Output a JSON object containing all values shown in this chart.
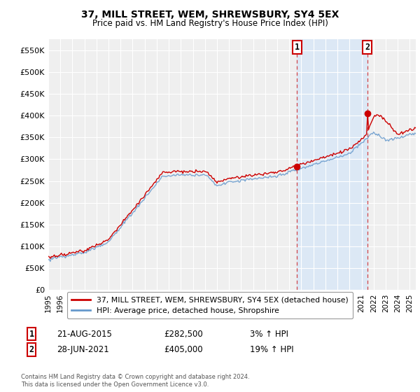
{
  "title": "37, MILL STREET, WEM, SHREWSBURY, SY4 5EX",
  "subtitle": "Price paid vs. HM Land Registry's House Price Index (HPI)",
  "ylim": [
    0,
    575000
  ],
  "yticks": [
    0,
    50000,
    100000,
    150000,
    200000,
    250000,
    300000,
    350000,
    400000,
    450000,
    500000,
    550000
  ],
  "ytick_labels": [
    "£0",
    "£50K",
    "£100K",
    "£150K",
    "£200K",
    "£250K",
    "£300K",
    "£350K",
    "£400K",
    "£450K",
    "£500K",
    "£550K"
  ],
  "background_color": "#ffffff",
  "plot_bg_color": "#efefef",
  "grid_color": "#ffffff",
  "hpi_color": "#6699cc",
  "price_color": "#cc0000",
  "shade_color": "#dce8f5",
  "sale1_x": 2015.64,
  "sale1_y": 282500,
  "sale1_label": "1",
  "sale1_date": "21-AUG-2015",
  "sale1_price": "£282,500",
  "sale1_hpi": "3% ↑ HPI",
  "sale2_x": 2021.49,
  "sale2_y": 405000,
  "sale2_label": "2",
  "sale2_date": "28-JUN-2021",
  "sale2_price": "£405,000",
  "sale2_hpi": "19% ↑ HPI",
  "legend_line1": "37, MILL STREET, WEM, SHREWSBURY, SY4 5EX (detached house)",
  "legend_line2": "HPI: Average price, detached house, Shropshire",
  "footer1": "Contains HM Land Registry data © Crown copyright and database right 2024.",
  "footer2": "This data is licensed under the Open Government Licence v3.0.",
  "xmin": 1995.0,
  "xmax": 2025.5,
  "xticks": [
    1995,
    1996,
    1997,
    1998,
    1999,
    2000,
    2001,
    2002,
    2003,
    2004,
    2005,
    2006,
    2007,
    2008,
    2009,
    2010,
    2011,
    2012,
    2013,
    2014,
    2015,
    2016,
    2017,
    2018,
    2019,
    2020,
    2021,
    2022,
    2023,
    2024,
    2025
  ]
}
